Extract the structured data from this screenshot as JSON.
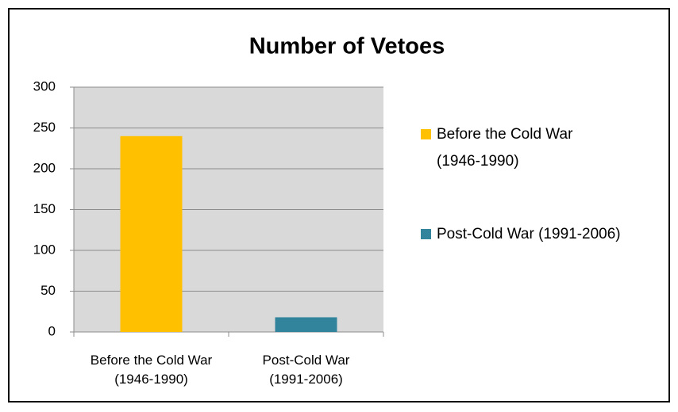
{
  "chart_data": {
    "type": "bar",
    "title": "Number of Vetoes",
    "categories": [
      "Before the Cold War (1946-1990)",
      "Post-Cold War (1991-2006)"
    ],
    "series": [
      {
        "name": "Before the Cold War (1946-1990)",
        "color": "#ffc000",
        "values": [
          240,
          null
        ]
      },
      {
        "name": "Post-Cold War (1991-2006)",
        "color": "#31849b",
        "values": [
          null,
          18
        ]
      }
    ],
    "ylim": [
      0,
      300
    ],
    "yticks": [
      0,
      50,
      100,
      150,
      200,
      250,
      300
    ],
    "grid": true,
    "legend": "right"
  }
}
